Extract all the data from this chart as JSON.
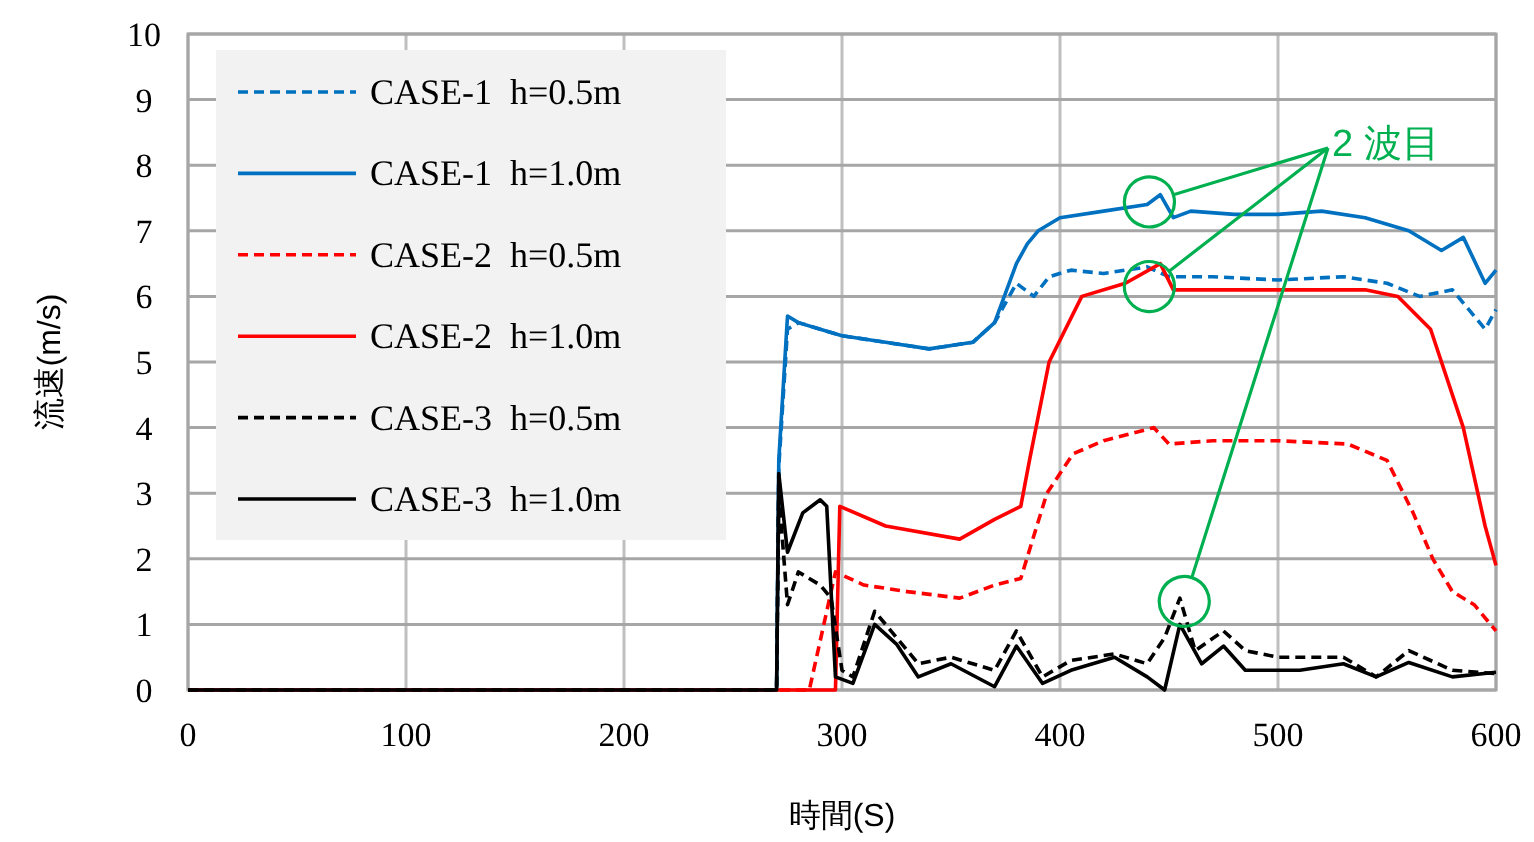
{
  "chart_data": {
    "type": "line",
    "xlabel": "時間(S)",
    "ylabel": "流速(m/s)",
    "annotations": [
      {
        "text": "2 波目",
        "x": 452,
        "y": 7.55
      }
    ],
    "xlim": [
      0,
      600
    ],
    "ylim": [
      0,
      10
    ],
    "xticks": [
      0,
      100,
      200,
      300,
      400,
      500,
      600
    ],
    "yticks": [
      0,
      1,
      2,
      3,
      4,
      5,
      6,
      7,
      8,
      9,
      10
    ],
    "grid": true,
    "legend": "top left",
    "series": [
      {
        "name": "CASE-1  h=0.5m",
        "color": "#0070c0",
        "line_style": "dashed",
        "x": [
          0,
          270,
          271,
          275,
          280,
          290,
          300,
          320,
          340,
          360,
          370,
          380,
          388,
          395,
          405,
          420,
          440,
          450,
          470,
          500,
          530,
          550,
          565,
          580,
          590,
          595,
          600
        ],
        "values": [
          0,
          0,
          3.4,
          5.5,
          5.6,
          5.5,
          5.4,
          5.3,
          5.2,
          5.3,
          5.6,
          6.2,
          6.0,
          6.3,
          6.4,
          6.35,
          6.45,
          6.3,
          6.3,
          6.25,
          6.3,
          6.2,
          6.0,
          6.1,
          5.7,
          5.5,
          5.8
        ]
      },
      {
        "name": "CASE-1  h=1.0m",
        "color": "#0070c0",
        "line_style": "solid",
        "x": [
          0,
          270,
          271,
          275,
          280,
          290,
          300,
          320,
          340,
          360,
          370,
          380,
          385,
          390,
          400,
          420,
          440,
          446,
          452,
          460,
          480,
          500,
          520,
          540,
          560,
          575,
          585,
          595,
          600
        ],
        "values": [
          0,
          0,
          3.5,
          5.7,
          5.6,
          5.5,
          5.4,
          5.3,
          5.2,
          5.3,
          5.6,
          6.5,
          6.8,
          7.0,
          7.2,
          7.3,
          7.4,
          7.55,
          7.2,
          7.3,
          7.25,
          7.25,
          7.3,
          7.2,
          7.0,
          6.7,
          6.9,
          6.2,
          6.4
        ]
      },
      {
        "name": "CASE-2  h=0.5m",
        "color": "#ff0000",
        "line_style": "dashed",
        "x": [
          0,
          270,
          271,
          275,
          285,
          297,
          310,
          330,
          354,
          370,
          382,
          394,
          406,
          420,
          443,
          450,
          470,
          500,
          532,
          550,
          562,
          571,
          580,
          590,
          600
        ],
        "values": [
          0,
          0,
          0,
          0,
          0,
          1.8,
          1.6,
          1.5,
          1.4,
          1.6,
          1.7,
          3.0,
          3.6,
          3.8,
          4.0,
          3.75,
          3.8,
          3.8,
          3.75,
          3.5,
          2.7,
          2.0,
          1.5,
          1.3,
          0.9
        ]
      },
      {
        "name": "CASE-2  h=1.0m",
        "color": "#ff0000",
        "line_style": "solid",
        "x": [
          0,
          270,
          275,
          290,
          297,
          299,
          320,
          354,
          370,
          382,
          386,
          395,
          410,
          430,
          446,
          452,
          460,
          500,
          540,
          555,
          570,
          585,
          595,
          600
        ],
        "values": [
          0,
          0,
          0,
          0,
          0,
          2.8,
          2.5,
          2.3,
          2.6,
          2.8,
          3.5,
          5.0,
          6.0,
          6.2,
          6.5,
          6.1,
          6.1,
          6.1,
          6.1,
          6.0,
          5.5,
          4.0,
          2.5,
          1.9
        ]
      },
      {
        "name": "CASE-3  h=0.5m",
        "color": "#000000",
        "line_style": "dashed",
        "x": [
          0,
          270,
          271,
          275,
          280,
          290,
          295,
          300,
          305,
          315,
          325,
          335,
          350,
          370,
          380,
          392,
          405,
          425,
          440,
          448,
          455,
          462,
          475,
          485,
          500,
          530,
          545,
          560,
          580,
          600
        ],
        "values": [
          0,
          0,
          3.0,
          1.3,
          1.8,
          1.6,
          1.4,
          0.3,
          0.2,
          1.2,
          0.8,
          0.4,
          0.5,
          0.3,
          0.9,
          0.2,
          0.45,
          0.55,
          0.4,
          0.8,
          1.4,
          0.6,
          0.9,
          0.6,
          0.5,
          0.5,
          0.2,
          0.6,
          0.3,
          0.25
        ]
      },
      {
        "name": "CASE-3  h=1.0m",
        "color": "#000000",
        "line_style": "solid",
        "x": [
          0,
          270,
          271,
          275,
          282,
          290,
          293,
          297,
          305,
          315,
          325,
          335,
          350,
          370,
          380,
          392,
          405,
          425,
          440,
          448,
          455,
          465,
          475,
          485,
          510,
          530,
          545,
          560,
          580,
          600
        ],
        "values": [
          0,
          0,
          3.3,
          2.1,
          2.7,
          2.9,
          2.8,
          0.2,
          0.1,
          1.0,
          0.7,
          0.2,
          0.4,
          0.05,
          0.67,
          0.1,
          0.3,
          0.5,
          0.2,
          0.0,
          1.0,
          0.4,
          0.67,
          0.3,
          0.3,
          0.4,
          0.2,
          0.42,
          0.2,
          0.27
        ]
      }
    ]
  }
}
